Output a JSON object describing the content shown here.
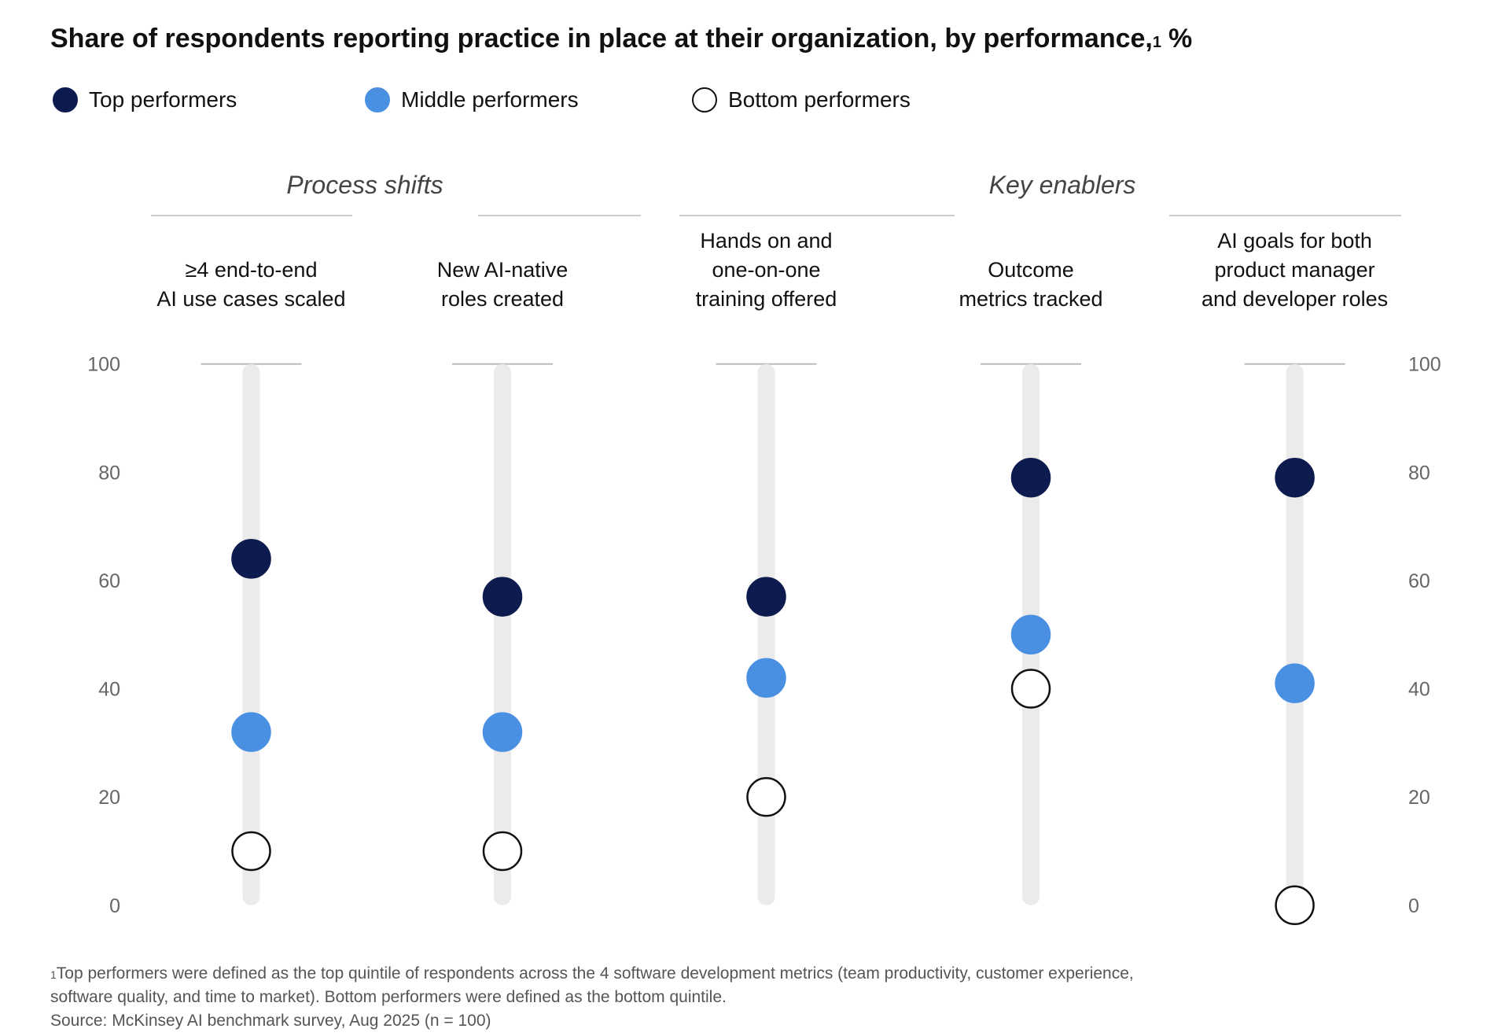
{
  "chart_data": {
    "type": "dot",
    "title": "Share of respondents reporting practice in place at their organization, by performance,",
    "title_note_mark": "1",
    "title_unit": "%",
    "groups": [
      "Process shifts",
      "Key enablers"
    ],
    "categories": [
      [
        "≥4 end-to-end",
        "AI use cases scaled"
      ],
      [
        "New AI-native",
        "roles created"
      ],
      [
        "Hands on and",
        "one-on-one",
        "training offered"
      ],
      [
        "Outcome",
        "metrics tracked"
      ],
      [
        "AI goals for both",
        "product manager",
        "and developer roles"
      ]
    ],
    "series": [
      {
        "name": "Top performers",
        "color": "#0d1b4f",
        "values": [
          64,
          57,
          57,
          79,
          79
        ]
      },
      {
        "name": "Middle performers",
        "color": "#4a90e2",
        "values": [
          32,
          32,
          42,
          50,
          41
        ]
      },
      {
        "name": "Bottom performers",
        "color": "#ffffff",
        "edgecolor": "#111111",
        "values": [
          10,
          10,
          20,
          40,
          0
        ]
      }
    ],
    "ylim": [
      0,
      100
    ],
    "yticks": [
      0,
      20,
      40,
      60,
      80,
      100
    ],
    "footnote_mark": "1",
    "footnotes": [
      "Top performers were defined as the top quintile of respondents across the 4 software development metrics (team productivity, customer experience,",
      "software quality, and time to market). Bottom performers were defined as the bottom quintile."
    ],
    "source": "Source: McKinsey AI benchmark survey, Aug 2025 (n = 100)"
  }
}
